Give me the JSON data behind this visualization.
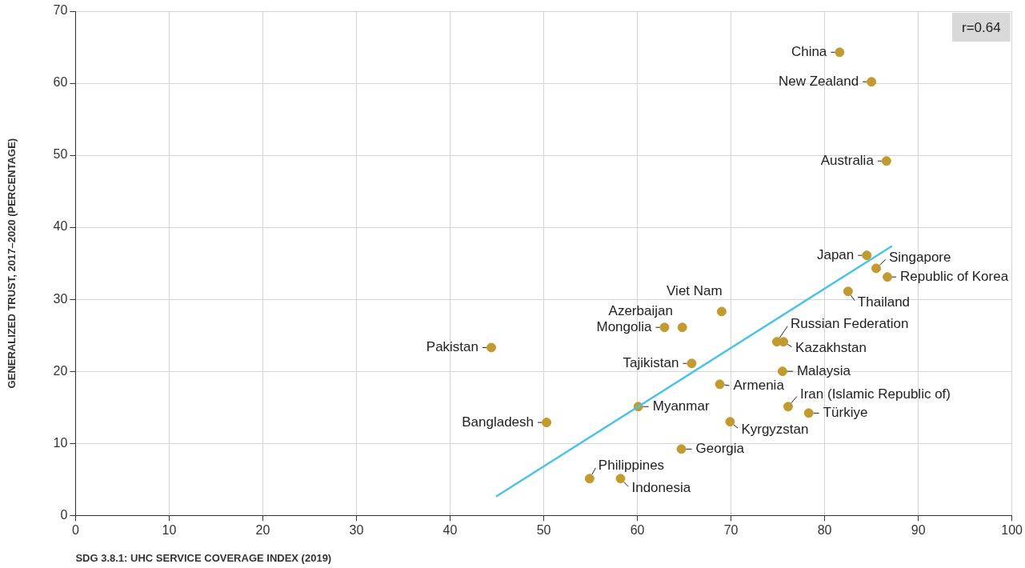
{
  "chart_data": {
    "type": "scatter",
    "xlabel": "SDG 3.8.1: UHC SERVICE COVERAGE INDEX (2019)",
    "ylabel": "GENERALIZED TRUST, 2017–2020 (PERCENTAGE)",
    "xlim": [
      0,
      100
    ],
    "xticks": [
      0,
      10,
      20,
      30,
      40,
      50,
      60,
      70,
      80,
      90,
      100
    ],
    "ylim": [
      0,
      70
    ],
    "yticks": [
      0,
      10,
      20,
      30,
      40,
      50,
      60,
      70
    ],
    "grid": true,
    "legend": false,
    "series": [
      {
        "marker": "circle",
        "color": "#c19b30",
        "x": [
          81.6,
          85.0,
          86.6,
          84.5,
          85.5,
          86.7,
          82.5,
          69.0,
          64.8,
          62.9,
          74.9,
          75.6,
          44.4,
          65.8,
          75.5,
          68.8,
          76.1,
          78.3,
          60.1,
          50.3,
          69.9,
          64.7,
          54.9,
          58.2
        ],
        "values": [
          64.3,
          60.2,
          49.2,
          36.1,
          34.3,
          33.1,
          31.1,
          28.3,
          26.1,
          26.1,
          24.1,
          24.1,
          23.3,
          21.1,
          20.0,
          18.2,
          15.1,
          14.2,
          15.1,
          12.9,
          13.0,
          9.2,
          5.1,
          5.1
        ]
      },
      {
        "type": "line",
        "marker": "none",
        "color": "#4cc3e6",
        "x": [
          44.9,
          87.2
        ],
        "values": [
          2.6,
          37.4
        ]
      }
    ],
    "annotations": [
      "r=0.64",
      {
        "text": "China",
        "x": 81.6,
        "y": 64.3
      },
      {
        "text": "New Zealand",
        "x": 85.0,
        "y": 60.2
      },
      {
        "text": "Australia",
        "x": 86.6,
        "y": 49.2
      },
      {
        "text": "Japan",
        "x": 84.5,
        "y": 36.1
      },
      {
        "text": "Singapore",
        "x": 85.5,
        "y": 34.3
      },
      {
        "text": "Republic of Korea",
        "x": 86.7,
        "y": 33.1
      },
      {
        "text": "Thailand",
        "x": 82.5,
        "y": 31.1
      },
      {
        "text": "Viet Nam",
        "x": 69.0,
        "y": 28.3
      },
      {
        "text": "Azerbaijan",
        "x": 64.8,
        "y": 26.1
      },
      {
        "text": "Mongolia",
        "x": 62.9,
        "y": 26.1
      },
      {
        "text": "Russian Federation",
        "x": 74.9,
        "y": 24.1
      },
      {
        "text": "Kazakhstan",
        "x": 75.6,
        "y": 24.1
      },
      {
        "text": "Pakistan",
        "x": 44.4,
        "y": 23.3
      },
      {
        "text": "Tajikistan",
        "x": 65.8,
        "y": 21.1
      },
      {
        "text": "Malaysia",
        "x": 75.5,
        "y": 20.0
      },
      {
        "text": "Armenia",
        "x": 68.8,
        "y": 18.2
      },
      {
        "text": "Iran (Islamic Republic of)",
        "x": 76.1,
        "y": 15.1
      },
      {
        "text": "Türkiye",
        "x": 78.3,
        "y": 14.2
      },
      {
        "text": "Myanmar",
        "x": 60.1,
        "y": 15.1
      },
      {
        "text": "Bangladesh",
        "x": 50.3,
        "y": 12.9
      },
      {
        "text": "Kyrgyzstan",
        "x": 69.9,
        "y": 13.0
      },
      {
        "text": "Georgia",
        "x": 64.7,
        "y": 9.2
      },
      {
        "text": "Philippines",
        "x": 54.9,
        "y": 5.1
      },
      {
        "text": "Indonesia",
        "x": 58.2,
        "y": 5.1
      }
    ]
  }
}
